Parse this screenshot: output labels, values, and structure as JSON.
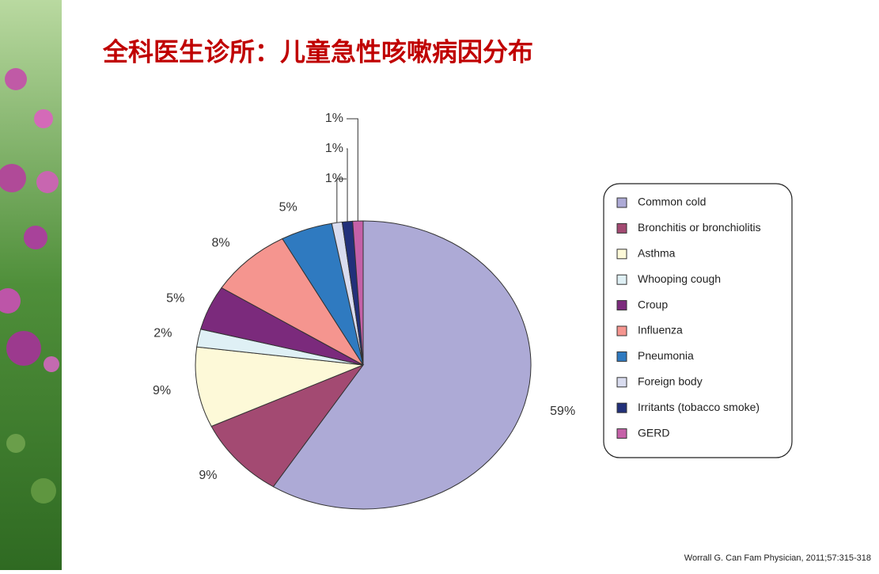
{
  "chart_data": {
    "type": "pie",
    "title": "全科医生诊所：儿童急性咳嗽病因分布",
    "categories": [
      "Common cold",
      "Bronchitis or bronchiolitis",
      "Asthma",
      "Whooping cough",
      "Croup",
      "Influenza",
      "Pneumonia",
      "Foreign body",
      "Irritants (tobacco smoke)",
      "GERD"
    ],
    "values": [
      59,
      9,
      9,
      2,
      5,
      8,
      5,
      1,
      1,
      1
    ],
    "value_labels": [
      "59%",
      "9%",
      "9%",
      "2%",
      "5%",
      "8%",
      "5%",
      "1%",
      "1%",
      "1%"
    ],
    "colors": [
      "#adaad6",
      "#a34a72",
      "#fdf9d8",
      "#dff0f5",
      "#7b2a7c",
      "#f5958f",
      "#2f7ac0",
      "#d9dcef",
      "#22307a",
      "#c561a8"
    ],
    "legend": "right",
    "source": "Worrall G. Can Fam Physician, 2011;57:315-318"
  }
}
